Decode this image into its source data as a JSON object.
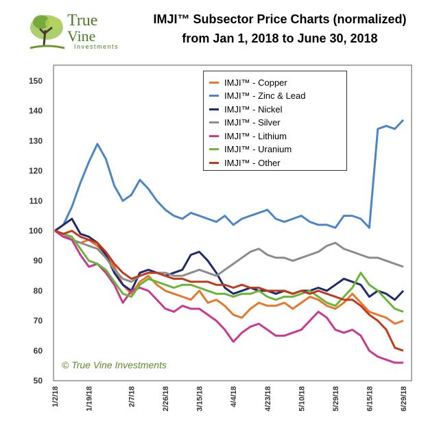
{
  "logo": {
    "line1": "True",
    "line2": "Vine",
    "line3": "Investments"
  },
  "title": {
    "line1": "IMJI™ Subsector Price Charts (normalized)",
    "line2": "from Jan 1, 2018 to June 30, 2018"
  },
  "copyright": "© True Vine Investments",
  "chart_data": {
    "type": "line",
    "title": "IMJI™ Subsector Price Charts (normalized) from Jan 1, 2018 to June 30, 2018",
    "xlabel": "",
    "ylabel": "",
    "ylim": [
      50,
      150
    ],
    "yticks": [
      50,
      60,
      70,
      80,
      90,
      100,
      110,
      120,
      130,
      140,
      150
    ],
    "xticks": [
      "1/2/18",
      "1/19/18",
      "2/7/18",
      "2/26/18",
      "3/15/18",
      "4/4/18",
      "4/23/18",
      "5/10/18",
      "5/29/18",
      "6/15/18",
      "6/29/18"
    ],
    "grid": false,
    "legend_position": "top-center",
    "x": [
      "1/2/18",
      "1/6/18",
      "1/10/18",
      "1/14/18",
      "1/19/18",
      "1/23/18",
      "1/27/18",
      "1/31/18",
      "2/4/18",
      "2/7/18",
      "2/12/18",
      "2/16/18",
      "2/21/18",
      "2/26/18",
      "3/2/18",
      "3/6/18",
      "3/10/18",
      "3/15/18",
      "3/19/18",
      "3/23/18",
      "3/28/18",
      "4/4/18",
      "4/8/18",
      "4/12/18",
      "4/17/18",
      "4/23/18",
      "4/27/18",
      "5/1/18",
      "5/5/18",
      "5/10/18",
      "5/14/18",
      "5/18/18",
      "5/22/18",
      "5/29/18",
      "6/2/18",
      "6/6/18",
      "6/10/18",
      "6/15/18",
      "6/18/18",
      "6/22/18",
      "6/26/18",
      "6/29/18"
    ],
    "series": [
      {
        "name": "IMJI™ - Copper",
        "color": "#e8772e",
        "values": [
          100,
          98,
          97,
          96,
          97,
          95,
          92,
          88,
          82,
          79,
          83,
          85,
          82,
          80,
          79,
          78,
          77,
          80,
          76,
          77,
          75,
          72,
          71,
          74,
          76,
          75,
          75,
          76,
          74,
          76,
          78,
          77,
          75,
          74,
          76,
          79,
          76,
          73,
          72,
          71,
          69,
          70
        ]
      },
      {
        "name": "IMJI™ - Zinc & Lead",
        "color": "#4a86c5",
        "values": [
          100,
          102,
          108,
          116,
          123,
          129,
          124,
          115,
          110,
          112,
          117,
          114,
          110,
          107,
          105,
          104,
          106,
          105,
          104,
          103,
          105,
          102,
          104,
          105,
          106,
          107,
          104,
          103,
          104,
          105,
          103,
          102,
          102,
          101,
          105,
          105,
          104,
          101,
          134,
          135,
          134,
          137
        ]
      },
      {
        "name": "IMJI™ - Nickel",
        "color": "#1e2a6e",
        "values": [
          100,
          102,
          104,
          99,
          98,
          96,
          92,
          86,
          82,
          80,
          86,
          87,
          86,
          85,
          86,
          87,
          92,
          93,
          90,
          86,
          81,
          79,
          80,
          81,
          80,
          80,
          79,
          80,
          79,
          80,
          80,
          81,
          80,
          82,
          84,
          83,
          82,
          78,
          80,
          79,
          77,
          80
        ]
      },
      {
        "name": "IMJI™ - Silver",
        "color": "#8c8c8c",
        "values": [
          100,
          99,
          97,
          96,
          95,
          94,
          91,
          87,
          84,
          83,
          85,
          86,
          86,
          86,
          85,
          85,
          86,
          87,
          86,
          85,
          87,
          89,
          91,
          93,
          94,
          92,
          91,
          91,
          90,
          91,
          92,
          93,
          95,
          96,
          94,
          93,
          92,
          91,
          91,
          90,
          89,
          88
        ]
      },
      {
        "name": "IMJI™ - Lithium",
        "color": "#c8398f",
        "values": [
          100,
          98,
          97,
          92,
          88,
          89,
          86,
          82,
          76,
          80,
          81,
          80,
          77,
          74,
          73,
          75,
          74,
          74,
          72,
          70,
          67,
          63,
          66,
          68,
          69,
          67,
          65,
          65,
          66,
          67,
          70,
          73,
          71,
          67,
          66,
          67,
          65,
          60,
          58,
          57,
          56,
          56
        ]
      },
      {
        "name": "IMJI™ - Uranium",
        "color": "#6ab437",
        "values": [
          100,
          99,
          98,
          94,
          90,
          89,
          87,
          83,
          79,
          78,
          82,
          84,
          83,
          82,
          81,
          82,
          82,
          81,
          80,
          79,
          79,
          78,
          79,
          79,
          80,
          78,
          77,
          78,
          78,
          79,
          80,
          78,
          76,
          75,
          78,
          81,
          86,
          82,
          80,
          77,
          74,
          73
        ]
      },
      {
        "name": "IMJI™ - Other",
        "color": "#c23a1e",
        "values": [
          100,
          99,
          100,
          98,
          97,
          96,
          93,
          89,
          86,
          84,
          85,
          86,
          86,
          85,
          84,
          84,
          83,
          83,
          83,
          82,
          82,
          81,
          82,
          81,
          81,
          80,
          80,
          80,
          79,
          80,
          79,
          80,
          79,
          78,
          77,
          77,
          75,
          72,
          70,
          67,
          61,
          60
        ]
      }
    ]
  }
}
